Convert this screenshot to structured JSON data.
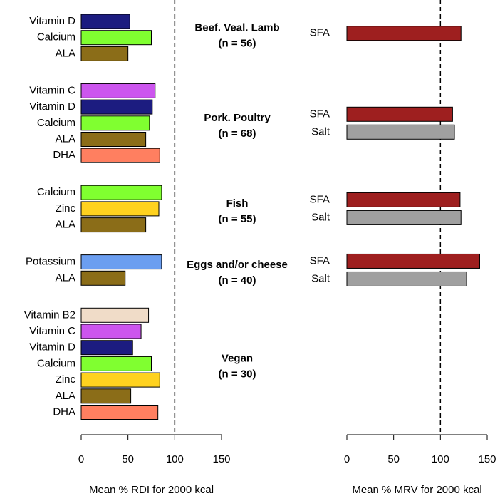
{
  "chart_data": {
    "type": "bar",
    "orientation": "horizontal",
    "groups": [
      {
        "label": "Beef. Veal. Lamb",
        "n": "(n = 56)",
        "rdi": {
          "categories": [
            "Vitamin D",
            "Calcium",
            "ALA"
          ],
          "values": [
            52,
            75,
            50
          ],
          "colors": [
            "#1c1c80",
            "#80ff30",
            "#8b6d18"
          ]
        },
        "mrv": {
          "categories": [
            "SFA"
          ],
          "values": [
            122
          ],
          "colors": [
            "#9e1f1f"
          ]
        }
      },
      {
        "label": "Pork. Poultry",
        "n": "(n = 68)",
        "rdi": {
          "categories": [
            "Vitamin C",
            "Vitamin D",
            "Calcium",
            "ALA",
            "DHA"
          ],
          "values": [
            79,
            76,
            73,
            69,
            84
          ],
          "colors": [
            "#cc55ee",
            "#1c1c80",
            "#80ff30",
            "#8b6d18",
            "#ff7f60"
          ]
        },
        "mrv": {
          "categories": [
            "SFA",
            "Salt"
          ],
          "values": [
            113,
            115
          ],
          "colors": [
            "#9e1f1f",
            "#a0a0a0"
          ]
        }
      },
      {
        "label": "Fish",
        "n": "(n = 55)",
        "rdi": {
          "categories": [
            "Calcium",
            "Zinc",
            "ALA"
          ],
          "values": [
            86,
            83,
            69
          ],
          "colors": [
            "#80ff30",
            "#ffd21f",
            "#8b6d18"
          ]
        },
        "mrv": {
          "categories": [
            "SFA",
            "Salt"
          ],
          "values": [
            121,
            122
          ],
          "colors": [
            "#9e1f1f",
            "#a0a0a0"
          ]
        }
      },
      {
        "label": "Eggs and/or cheese",
        "n": "(n = 40)",
        "rdi": {
          "categories": [
            "Potassium",
            "ALA"
          ],
          "values": [
            86,
            47
          ],
          "colors": [
            "#6b9ef0",
            "#8b6d18"
          ]
        },
        "mrv": {
          "categories": [
            "SFA",
            "Salt"
          ],
          "values": [
            142,
            128
          ],
          "colors": [
            "#9e1f1f",
            "#a0a0a0"
          ]
        }
      },
      {
        "label": "Vegan",
        "n": "(n = 30)",
        "rdi": {
          "categories": [
            "Vitamin B2",
            "Vitamin C",
            "Vitamin D",
            "Calcium",
            "Zinc",
            "ALA",
            "DHA"
          ],
          "values": [
            72,
            64,
            55,
            75,
            84,
            53,
            82
          ],
          "colors": [
            "#f0dcc8",
            "#cc55ee",
            "#1c1c80",
            "#80ff30",
            "#ffd21f",
            "#8b6d18",
            "#ff7f60"
          ]
        },
        "mrv": {
          "categories": [],
          "values": [],
          "colors": []
        }
      }
    ],
    "rdi_axis": {
      "xlabel": "Mean % RDI for 2000 kcal",
      "xlim": [
        0,
        150
      ],
      "xticks": [
        0,
        50,
        100,
        150
      ],
      "refline": 100
    },
    "mrv_axis": {
      "xlabel": "Mean % MRV for 2000 kcal",
      "xlim": [
        0,
        150
      ],
      "xticks": [
        0,
        50,
        100,
        150
      ],
      "refline": 100
    }
  }
}
